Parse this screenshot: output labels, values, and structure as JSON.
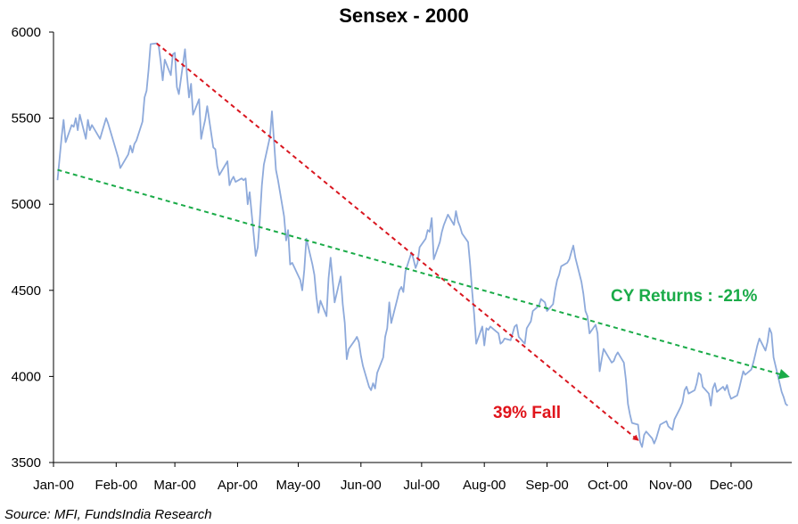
{
  "chart_data": {
    "type": "line",
    "title": "Sensex - 2000",
    "xlabel": "",
    "ylabel": "",
    "ylim": [
      3500,
      6000
    ],
    "yticks": [
      3500,
      4000,
      4500,
      5000,
      5500,
      6000
    ],
    "x_tick_labels": [
      "Jan-00",
      "Feb-00",
      "Mar-00",
      "Apr-00",
      "May-00",
      "Jun-00",
      "Jul-00",
      "Aug-00",
      "Sep-00",
      "Oct-00",
      "Nov-00",
      "Dec-00"
    ],
    "grid": false,
    "legend": "none",
    "series": [
      {
        "color": "#8eaadb",
        "points": [
          [
            "2000-01-03",
            5140
          ],
          [
            "2000-01-05",
            5390
          ],
          [
            "2000-01-06",
            5490
          ],
          [
            "2000-01-07",
            5360
          ],
          [
            "2000-01-10",
            5460
          ],
          [
            "2000-01-11",
            5450
          ],
          [
            "2000-01-12",
            5500
          ],
          [
            "2000-01-13",
            5430
          ],
          [
            "2000-01-14",
            5520
          ],
          [
            "2000-01-17",
            5380
          ],
          [
            "2000-01-18",
            5490
          ],
          [
            "2000-01-19",
            5430
          ],
          [
            "2000-01-20",
            5460
          ],
          [
            "2000-01-21",
            5440
          ],
          [
            "2000-01-24",
            5380
          ],
          [
            "2000-01-25",
            5420
          ],
          [
            "2000-01-27",
            5500
          ],
          [
            "2000-01-28",
            5470
          ],
          [
            "2000-01-31",
            5350
          ],
          [
            "2000-02-02",
            5270
          ],
          [
            "2000-02-03",
            5210
          ],
          [
            "2000-02-04",
            5230
          ],
          [
            "2000-02-07",
            5290
          ],
          [
            "2000-02-08",
            5340
          ],
          [
            "2000-02-09",
            5300
          ],
          [
            "2000-02-10",
            5350
          ],
          [
            "2000-02-11",
            5370
          ],
          [
            "2000-02-14",
            5480
          ],
          [
            "2000-02-15",
            5620
          ],
          [
            "2000-02-16",
            5660
          ],
          [
            "2000-02-17",
            5780
          ],
          [
            "2000-02-18",
            5930
          ],
          [
            "2000-02-21",
            5935
          ],
          [
            "2000-02-22",
            5920
          ],
          [
            "2000-02-23",
            5830
          ],
          [
            "2000-02-24",
            5720
          ],
          [
            "2000-02-25",
            5840
          ],
          [
            "2000-02-28",
            5750
          ],
          [
            "2000-02-29",
            5870
          ],
          [
            "2000-03-01",
            5880
          ],
          [
            "2000-03-02",
            5680
          ],
          [
            "2000-03-03",
            5640
          ],
          [
            "2000-03-06",
            5900
          ],
          [
            "2000-03-07",
            5750
          ],
          [
            "2000-03-08",
            5620
          ],
          [
            "2000-03-09",
            5700
          ],
          [
            "2000-03-10",
            5520
          ],
          [
            "2000-03-13",
            5610
          ],
          [
            "2000-03-14",
            5380
          ],
          [
            "2000-03-15",
            5440
          ],
          [
            "2000-03-16",
            5490
          ],
          [
            "2000-03-17",
            5570
          ],
          [
            "2000-03-20",
            5330
          ],
          [
            "2000-03-21",
            5320
          ],
          [
            "2000-03-22",
            5220
          ],
          [
            "2000-03-23",
            5170
          ],
          [
            "2000-03-24",
            5190
          ],
          [
            "2000-03-27",
            5250
          ],
          [
            "2000-03-28",
            5110
          ],
          [
            "2000-03-29",
            5140
          ],
          [
            "2000-03-30",
            5160
          ],
          [
            "2000-03-31",
            5130
          ],
          [
            "2000-04-03",
            5150
          ],
          [
            "2000-04-04",
            5140
          ],
          [
            "2000-04-05",
            5150
          ],
          [
            "2000-04-06",
            5000
          ],
          [
            "2000-04-07",
            5070
          ],
          [
            "2000-04-10",
            4700
          ],
          [
            "2000-04-11",
            4750
          ],
          [
            "2000-04-12",
            4910
          ],
          [
            "2000-04-13",
            5110
          ],
          [
            "2000-04-14",
            5230
          ],
          [
            "2000-04-17",
            5390
          ],
          [
            "2000-04-18",
            5540
          ],
          [
            "2000-04-19",
            5370
          ],
          [
            "2000-04-20",
            5200
          ],
          [
            "2000-04-21",
            5140
          ],
          [
            "2000-04-24",
            4930
          ],
          [
            "2000-04-25",
            4790
          ],
          [
            "2000-04-26",
            4850
          ],
          [
            "2000-04-27",
            4650
          ],
          [
            "2000-04-28",
            4660
          ],
          [
            "2000-05-02",
            4560
          ],
          [
            "2000-05-03",
            4500
          ],
          [
            "2000-05-04",
            4620
          ],
          [
            "2000-05-05",
            4800
          ],
          [
            "2000-05-08",
            4650
          ],
          [
            "2000-05-09",
            4590
          ],
          [
            "2000-05-10",
            4460
          ],
          [
            "2000-05-11",
            4370
          ],
          [
            "2000-05-12",
            4440
          ],
          [
            "2000-05-15",
            4350
          ],
          [
            "2000-05-16",
            4570
          ],
          [
            "2000-05-17",
            4690
          ],
          [
            "2000-05-18",
            4560
          ],
          [
            "2000-05-19",
            4430
          ],
          [
            "2000-05-22",
            4580
          ],
          [
            "2000-05-23",
            4420
          ],
          [
            "2000-05-24",
            4310
          ],
          [
            "2000-05-25",
            4100
          ],
          [
            "2000-05-26",
            4160
          ],
          [
            "2000-05-29",
            4210
          ],
          [
            "2000-05-30",
            4230
          ],
          [
            "2000-05-31",
            4200
          ],
          [
            "2000-06-01",
            4120
          ],
          [
            "2000-06-02",
            4060
          ],
          [
            "2000-06-05",
            3940
          ],
          [
            "2000-06-06",
            3920
          ],
          [
            "2000-06-07",
            3960
          ],
          [
            "2000-06-08",
            3930
          ],
          [
            "2000-06-09",
            4020
          ],
          [
            "2000-06-12",
            4110
          ],
          [
            "2000-06-13",
            4230
          ],
          [
            "2000-06-14",
            4280
          ],
          [
            "2000-06-15",
            4430
          ],
          [
            "2000-06-16",
            4310
          ],
          [
            "2000-06-19",
            4450
          ],
          [
            "2000-06-20",
            4500
          ],
          [
            "2000-06-21",
            4520
          ],
          [
            "2000-06-22",
            4490
          ],
          [
            "2000-06-23",
            4610
          ],
          [
            "2000-06-26",
            4720
          ],
          [
            "2000-06-27",
            4680
          ],
          [
            "2000-06-28",
            4630
          ],
          [
            "2000-06-29",
            4660
          ],
          [
            "2000-06-30",
            4750
          ],
          [
            "2000-07-03",
            4800
          ],
          [
            "2000-07-04",
            4850
          ],
          [
            "2000-07-05",
            4840
          ],
          [
            "2000-07-06",
            4920
          ],
          [
            "2000-07-07",
            4680
          ],
          [
            "2000-07-10",
            4780
          ],
          [
            "2000-07-11",
            4840
          ],
          [
            "2000-07-12",
            4880
          ],
          [
            "2000-07-13",
            4910
          ],
          [
            "2000-07-14",
            4940
          ],
          [
            "2000-07-17",
            4880
          ],
          [
            "2000-07-18",
            4960
          ],
          [
            "2000-07-19",
            4900
          ],
          [
            "2000-07-20",
            4870
          ],
          [
            "2000-07-21",
            4830
          ],
          [
            "2000-07-24",
            4780
          ],
          [
            "2000-07-25",
            4650
          ],
          [
            "2000-07-26",
            4490
          ],
          [
            "2000-07-27",
            4360
          ],
          [
            "2000-07-28",
            4190
          ],
          [
            "2000-07-31",
            4290
          ],
          [
            "2000-08-01",
            4180
          ],
          [
            "2000-08-02",
            4280
          ],
          [
            "2000-08-03",
            4270
          ],
          [
            "2000-08-04",
            4290
          ],
          [
            "2000-08-07",
            4260
          ],
          [
            "2000-08-08",
            4250
          ],
          [
            "2000-08-09",
            4190
          ],
          [
            "2000-08-10",
            4200
          ],
          [
            "2000-08-11",
            4220
          ],
          [
            "2000-08-14",
            4210
          ],
          [
            "2000-08-16",
            4290
          ],
          [
            "2000-08-17",
            4300
          ],
          [
            "2000-08-18",
            4230
          ],
          [
            "2000-08-21",
            4190
          ],
          [
            "2000-08-22",
            4280
          ],
          [
            "2000-08-23",
            4300
          ],
          [
            "2000-08-24",
            4320
          ],
          [
            "2000-08-25",
            4380
          ],
          [
            "2000-08-28",
            4410
          ],
          [
            "2000-08-29",
            4450
          ],
          [
            "2000-08-30",
            4440
          ],
          [
            "2000-08-31",
            4430
          ],
          [
            "2000-09-01",
            4380
          ],
          [
            "2000-09-04",
            4420
          ],
          [
            "2000-09-05",
            4500
          ],
          [
            "2000-09-06",
            4560
          ],
          [
            "2000-09-07",
            4590
          ],
          [
            "2000-09-08",
            4640
          ],
          [
            "2000-09-11",
            4660
          ],
          [
            "2000-09-12",
            4680
          ],
          [
            "2000-09-13",
            4720
          ],
          [
            "2000-09-14",
            4760
          ],
          [
            "2000-09-15",
            4690
          ],
          [
            "2000-09-18",
            4550
          ],
          [
            "2000-09-19",
            4480
          ],
          [
            "2000-09-20",
            4380
          ],
          [
            "2000-09-21",
            4350
          ],
          [
            "2000-09-22",
            4250
          ],
          [
            "2000-09-25",
            4300
          ],
          [
            "2000-09-26",
            4250
          ],
          [
            "2000-09-27",
            4030
          ],
          [
            "2000-09-28",
            4100
          ],
          [
            "2000-09-29",
            4160
          ],
          [
            "2000-10-03",
            4080
          ],
          [
            "2000-10-04",
            4090
          ],
          [
            "2000-10-05",
            4120
          ],
          [
            "2000-10-06",
            4140
          ],
          [
            "2000-10-09",
            4080
          ],
          [
            "2000-10-10",
            3980
          ],
          [
            "2000-10-11",
            3840
          ],
          [
            "2000-10-12",
            3780
          ],
          [
            "2000-10-13",
            3730
          ],
          [
            "2000-10-16",
            3720
          ],
          [
            "2000-10-17",
            3620
          ],
          [
            "2000-10-18",
            3590
          ],
          [
            "2000-10-19",
            3660
          ],
          [
            "2000-10-20",
            3680
          ],
          [
            "2000-10-23",
            3640
          ],
          [
            "2000-10-24",
            3610
          ],
          [
            "2000-10-25",
            3640
          ],
          [
            "2000-10-27",
            3720
          ],
          [
            "2000-10-30",
            3740
          ],
          [
            "2000-10-31",
            3710
          ],
          [
            "2000-11-01",
            3700
          ],
          [
            "2000-11-02",
            3690
          ],
          [
            "2000-11-03",
            3750
          ],
          [
            "2000-11-06",
            3820
          ],
          [
            "2000-11-07",
            3850
          ],
          [
            "2000-11-08",
            3920
          ],
          [
            "2000-11-09",
            3940
          ],
          [
            "2000-11-10",
            3900
          ],
          [
            "2000-11-13",
            3920
          ],
          [
            "2000-11-14",
            3960
          ],
          [
            "2000-11-15",
            4020
          ],
          [
            "2000-11-16",
            4010
          ],
          [
            "2000-11-17",
            3940
          ],
          [
            "2000-11-20",
            3900
          ],
          [
            "2000-11-21",
            3830
          ],
          [
            "2000-11-22",
            3930
          ],
          [
            "2000-11-23",
            3960
          ],
          [
            "2000-11-24",
            3910
          ],
          [
            "2000-11-27",
            3940
          ],
          [
            "2000-11-28",
            3920
          ],
          [
            "2000-11-29",
            3950
          ],
          [
            "2000-11-30",
            3900
          ],
          [
            "2000-12-01",
            3870
          ],
          [
            "2000-12-04",
            3890
          ],
          [
            "2000-12-05",
            3930
          ],
          [
            "2000-12-06",
            3980
          ],
          [
            "2000-12-07",
            4030
          ],
          [
            "2000-12-08",
            4010
          ],
          [
            "2000-12-11",
            4040
          ],
          [
            "2000-12-12",
            4080
          ],
          [
            "2000-12-13",
            4130
          ],
          [
            "2000-12-14",
            4180
          ],
          [
            "2000-12-15",
            4220
          ],
          [
            "2000-12-18",
            4150
          ],
          [
            "2000-12-19",
            4200
          ],
          [
            "2000-12-20",
            4280
          ],
          [
            "2000-12-21",
            4250
          ],
          [
            "2000-12-22",
            4110
          ],
          [
            "2000-12-26",
            3910
          ],
          [
            "2000-12-27",
            3880
          ],
          [
            "2000-12-28",
            3840
          ],
          [
            "2000-12-29",
            3830
          ]
        ]
      }
    ],
    "trendlines": [
      {
        "color": "#d9161f",
        "style": "dashed",
        "arrow": "end",
        "from": [
          "2000-02-21",
          5935
        ],
        "to": [
          "2000-10-16",
          3630
        ]
      },
      {
        "color": "#1aab48",
        "style": "dashed",
        "arrow": "end",
        "from": [
          "2000-01-03",
          5200
        ],
        "to": [
          "2000-12-29",
          4000
        ]
      }
    ],
    "annotations": [
      {
        "text": "39% Fall",
        "color": "#e0141b"
      },
      {
        "text": "CY Returns : -21%",
        "color": "#1aab48"
      }
    ],
    "source": "Source: MFI, FundsIndia Research"
  }
}
